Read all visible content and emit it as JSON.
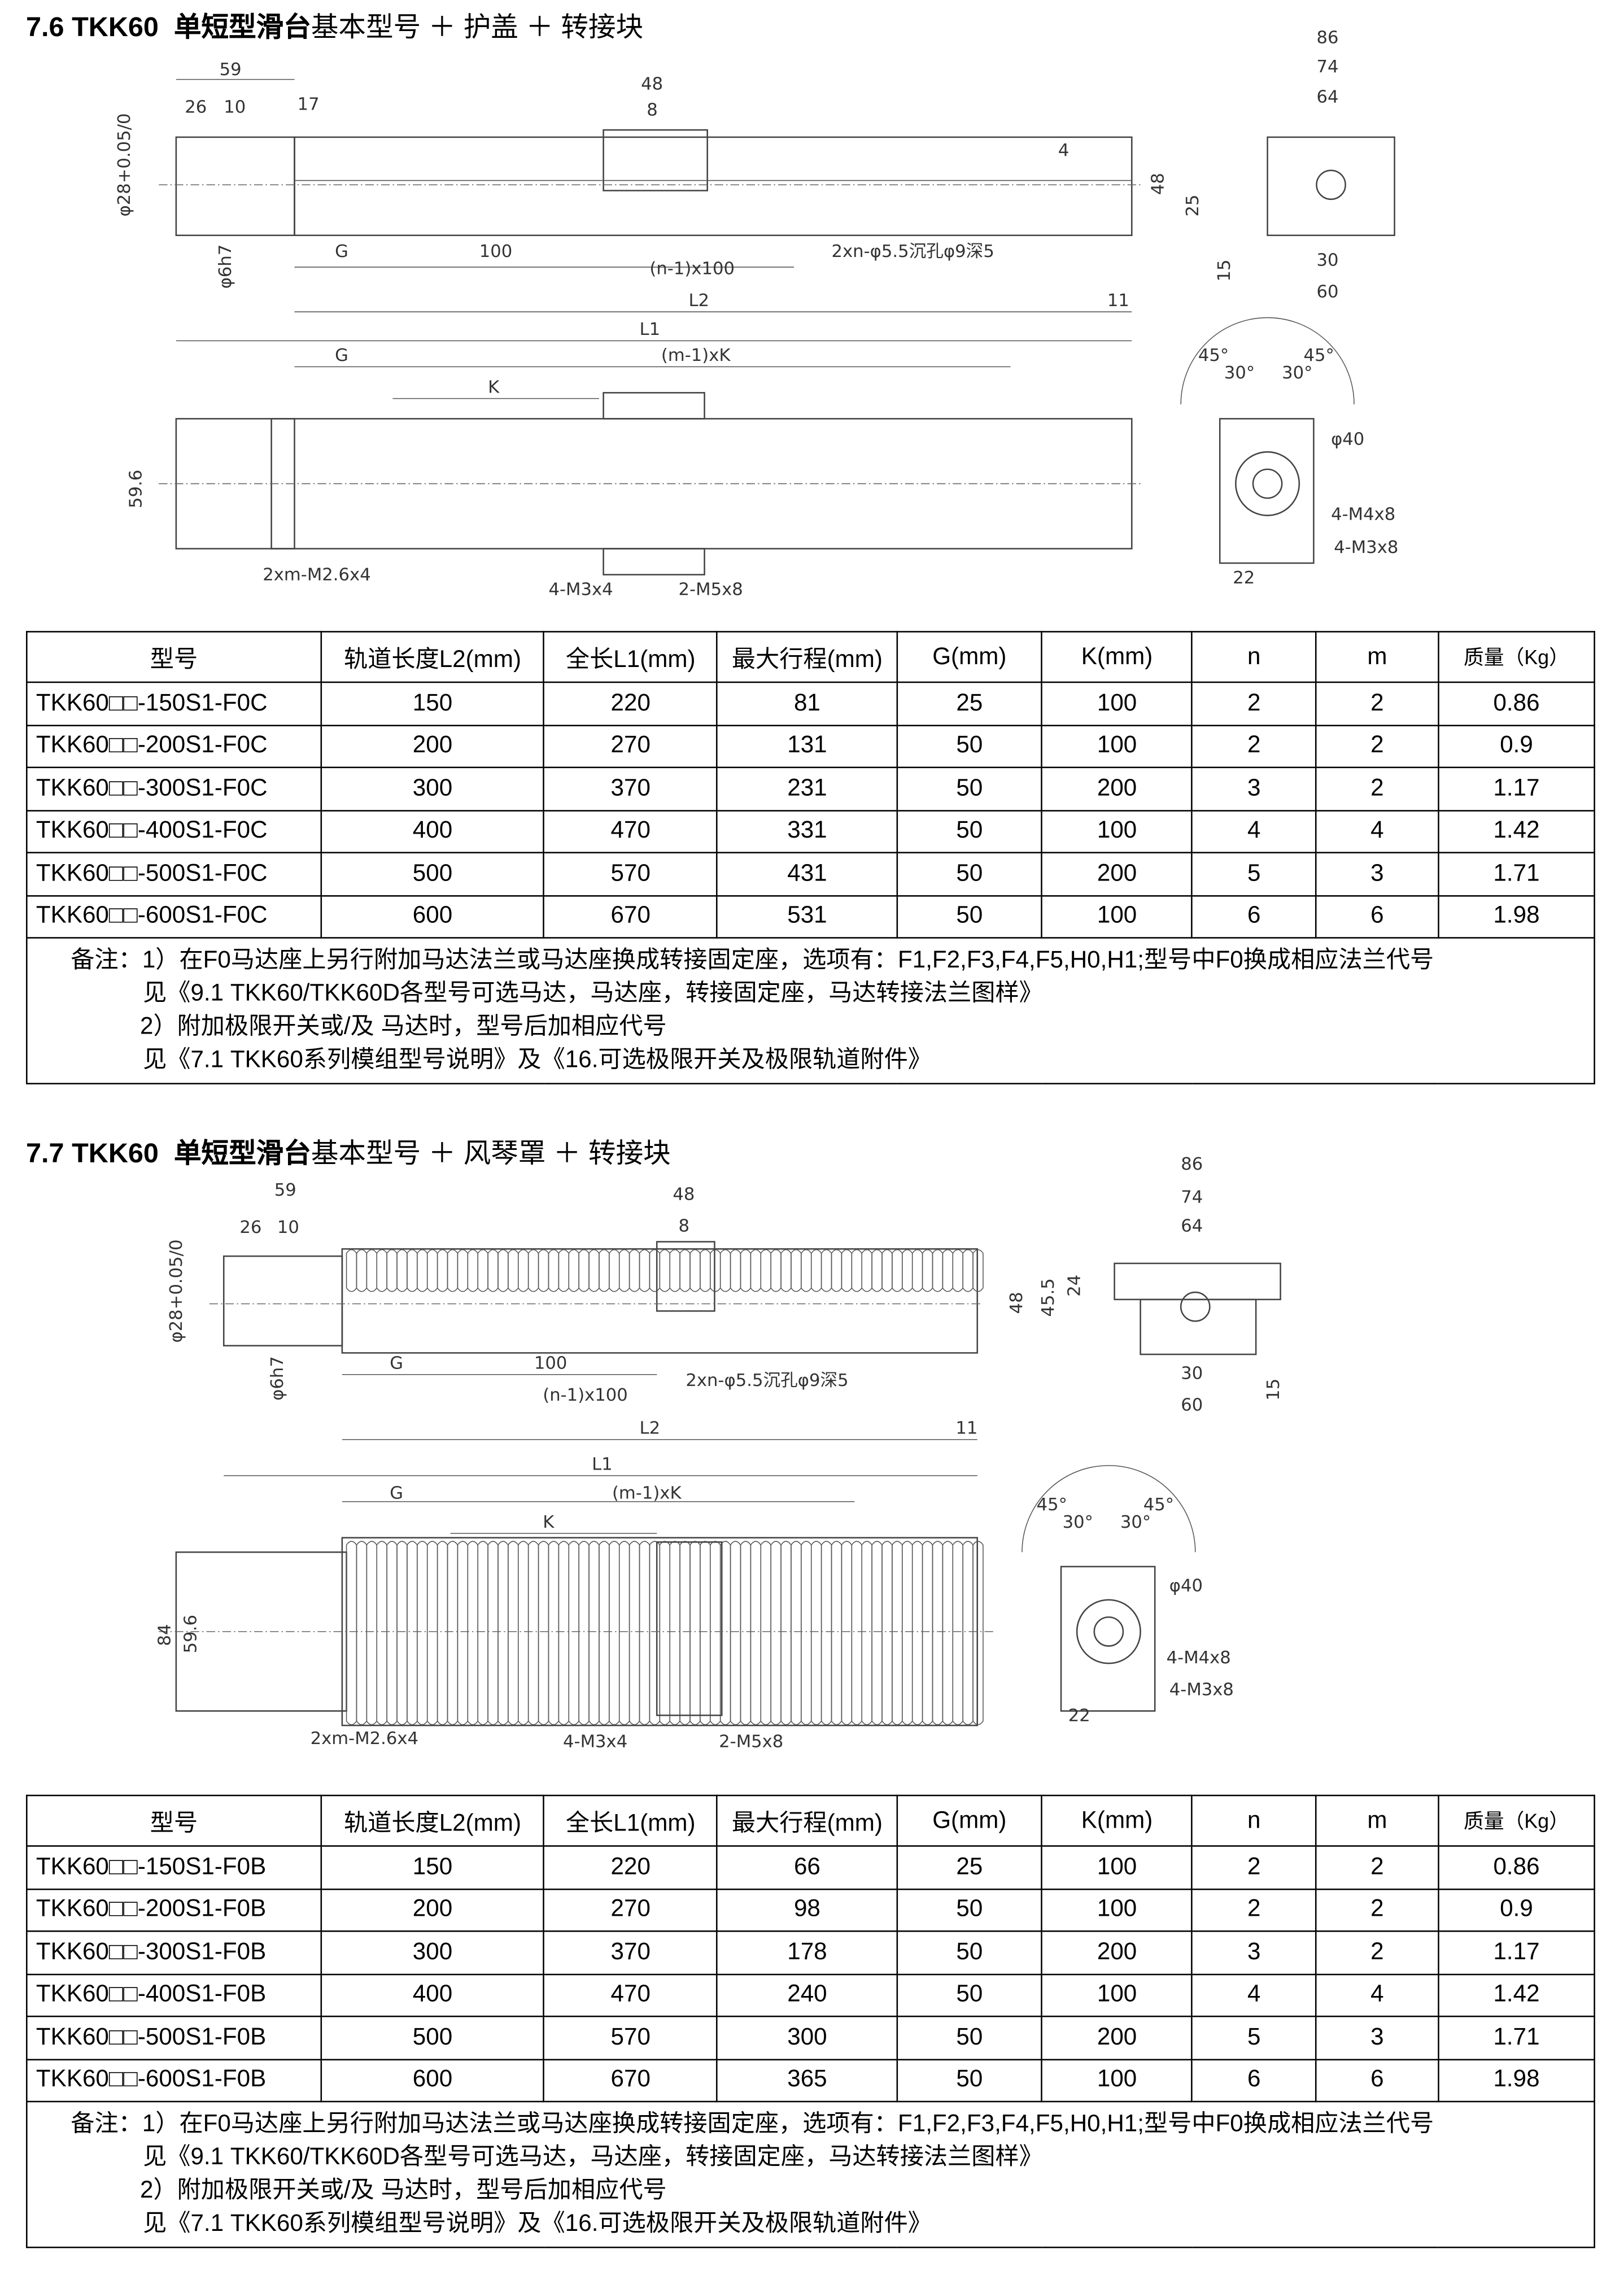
{
  "sections": [
    {
      "number": "7.6",
      "model": "TKK60",
      "title_bold": "单短型滑台",
      "title_rest": "基本型号 ＋ 护盖 ＋ 转接块",
      "dims": {
        "d59": "59",
        "d26": "26",
        "d10": "10",
        "d17": "17",
        "d48": "48",
        "d8": "8",
        "d4": "4",
        "tol": "φ28+0.05/0",
        "shaft": "φ6h7",
        "G": "G",
        "d100": "100",
        "n": "(n-1)x100",
        "holes": "2xn-φ5.5沉孔φ9深5",
        "L2": "L2",
        "L1": "L1",
        "d11": "11",
        "m": "(m-1)xK",
        "K": "K",
        "w596": "59.6",
        "m26": "2xm-M2.6x4",
        "m3": "4-M3x4",
        "m5": "2-M5x8",
        "e86": "86",
        "e74": "74",
        "e64": "64",
        "e48": "48",
        "e25": "25",
        "e15": "15",
        "e30": "30",
        "e60": "60",
        "a45": "45°",
        "a30": "30°",
        "p40": "φ40",
        "m4": "4-M4x8",
        "m3b": "4-M3x8",
        "e22": "22"
      },
      "headers": [
        "型号",
        "轨道长度L2(mm)",
        "全长L1(mm)",
        "最大行程(mm)",
        "G(mm)",
        "K(mm)",
        "n",
        "m",
        "质量（Kg）"
      ],
      "rows": [
        [
          "TKK60□□-150S1-F0C",
          "150",
          "220",
          "81",
          "25",
          "100",
          "2",
          "2",
          "0.86"
        ],
        [
          "TKK60□□-200S1-F0C",
          "200",
          "270",
          "131",
          "50",
          "100",
          "2",
          "2",
          "0.9"
        ],
        [
          "TKK60□□-300S1-F0C",
          "300",
          "370",
          "231",
          "50",
          "200",
          "3",
          "2",
          "1.17"
        ],
        [
          "TKK60□□-400S1-F0C",
          "400",
          "470",
          "331",
          "50",
          "100",
          "4",
          "4",
          "1.42"
        ],
        [
          "TKK60□□-500S1-F0C",
          "500",
          "570",
          "431",
          "50",
          "200",
          "5",
          "3",
          "1.71"
        ],
        [
          "TKK60□□-600S1-F0C",
          "600",
          "670",
          "531",
          "50",
          "100",
          "6",
          "6",
          "1.98"
        ]
      ],
      "notes": [
        "备注：1）在F0马达座上另行附加马达法兰或马达座换成转接固定座，选项有：F1,F2,F3,F4,F5,H0,H1;型号中F0换成相应法兰代号",
        "见《9.1 TKK60/TKK60D各型号可选马达，马达座，转接固定座，马达转接法兰图样》",
        "2）附加极限开关或/及 马达时，型号后加相应代号",
        "见《7.1 TKK60系列模组型号说明》及《16.可选极限开关及极限轨道附件》"
      ]
    },
    {
      "number": "7.7",
      "model": "TKK60",
      "title_bold": "单短型滑台",
      "title_rest": "基本型号 ＋ 风琴罩 ＋ 转接块",
      "dims": {
        "d59": "59",
        "d26": "26",
        "d10": "10",
        "d48": "48",
        "d8": "8",
        "tol": "φ28+0.05/0",
        "shaft": "φ6h7",
        "G": "G",
        "d100": "100",
        "n": "(n-1)x100",
        "holes": "2xn-φ5.5沉孔φ9深5",
        "L2": "L2",
        "L1": "L1",
        "d11": "11",
        "m": "(m-1)xK",
        "K": "K",
        "w84": "84",
        "w596": "59.6",
        "m26": "2xm-M2.6x4",
        "m3": "4-M3x4",
        "m5": "2-M5x8",
        "e86": "86",
        "e74": "74",
        "e64": "64",
        "e48": "48",
        "e455": "45.5",
        "e24": "24",
        "e15": "15",
        "e30": "30",
        "e60": "60",
        "a45": "45°",
        "a30": "30°",
        "p40": "φ40",
        "m4": "4-M4x8",
        "m3b": "4-M3x8",
        "e22": "22"
      },
      "headers": [
        "型号",
        "轨道长度L2(mm)",
        "全长L1(mm)",
        "最大行程(mm)",
        "G(mm)",
        "K(mm)",
        "n",
        "m",
        "质量（Kg）"
      ],
      "rows": [
        [
          "TKK60□□-150S1-F0B",
          "150",
          "220",
          "66",
          "25",
          "100",
          "2",
          "2",
          "0.86"
        ],
        [
          "TKK60□□-200S1-F0B",
          "200",
          "270",
          "98",
          "50",
          "100",
          "2",
          "2",
          "0.9"
        ],
        [
          "TKK60□□-300S1-F0B",
          "300",
          "370",
          "178",
          "50",
          "200",
          "3",
          "2",
          "1.17"
        ],
        [
          "TKK60□□-400S1-F0B",
          "400",
          "470",
          "240",
          "50",
          "100",
          "4",
          "4",
          "1.42"
        ],
        [
          "TKK60□□-500S1-F0B",
          "500",
          "570",
          "300",
          "50",
          "200",
          "5",
          "3",
          "1.71"
        ],
        [
          "TKK60□□-600S1-F0B",
          "600",
          "670",
          "365",
          "50",
          "100",
          "6",
          "6",
          "1.98"
        ]
      ],
      "notes": [
        "备注：1）在F0马达座上另行附加马达法兰或马达座换成转接固定座，选项有：F1,F2,F3,F4,F5,H0,H1;型号中F0换成相应法兰代号",
        "见《9.1 TKK60/TKK60D各型号可选马达，马达座，转接固定座，马达转接法兰图样》",
        "2）附加极限开关或/及 马达时，型号后加相应代号",
        "见《7.1 TKK60系列模组型号说明》及《16.可选极限开关及极限轨道附件》"
      ]
    }
  ]
}
